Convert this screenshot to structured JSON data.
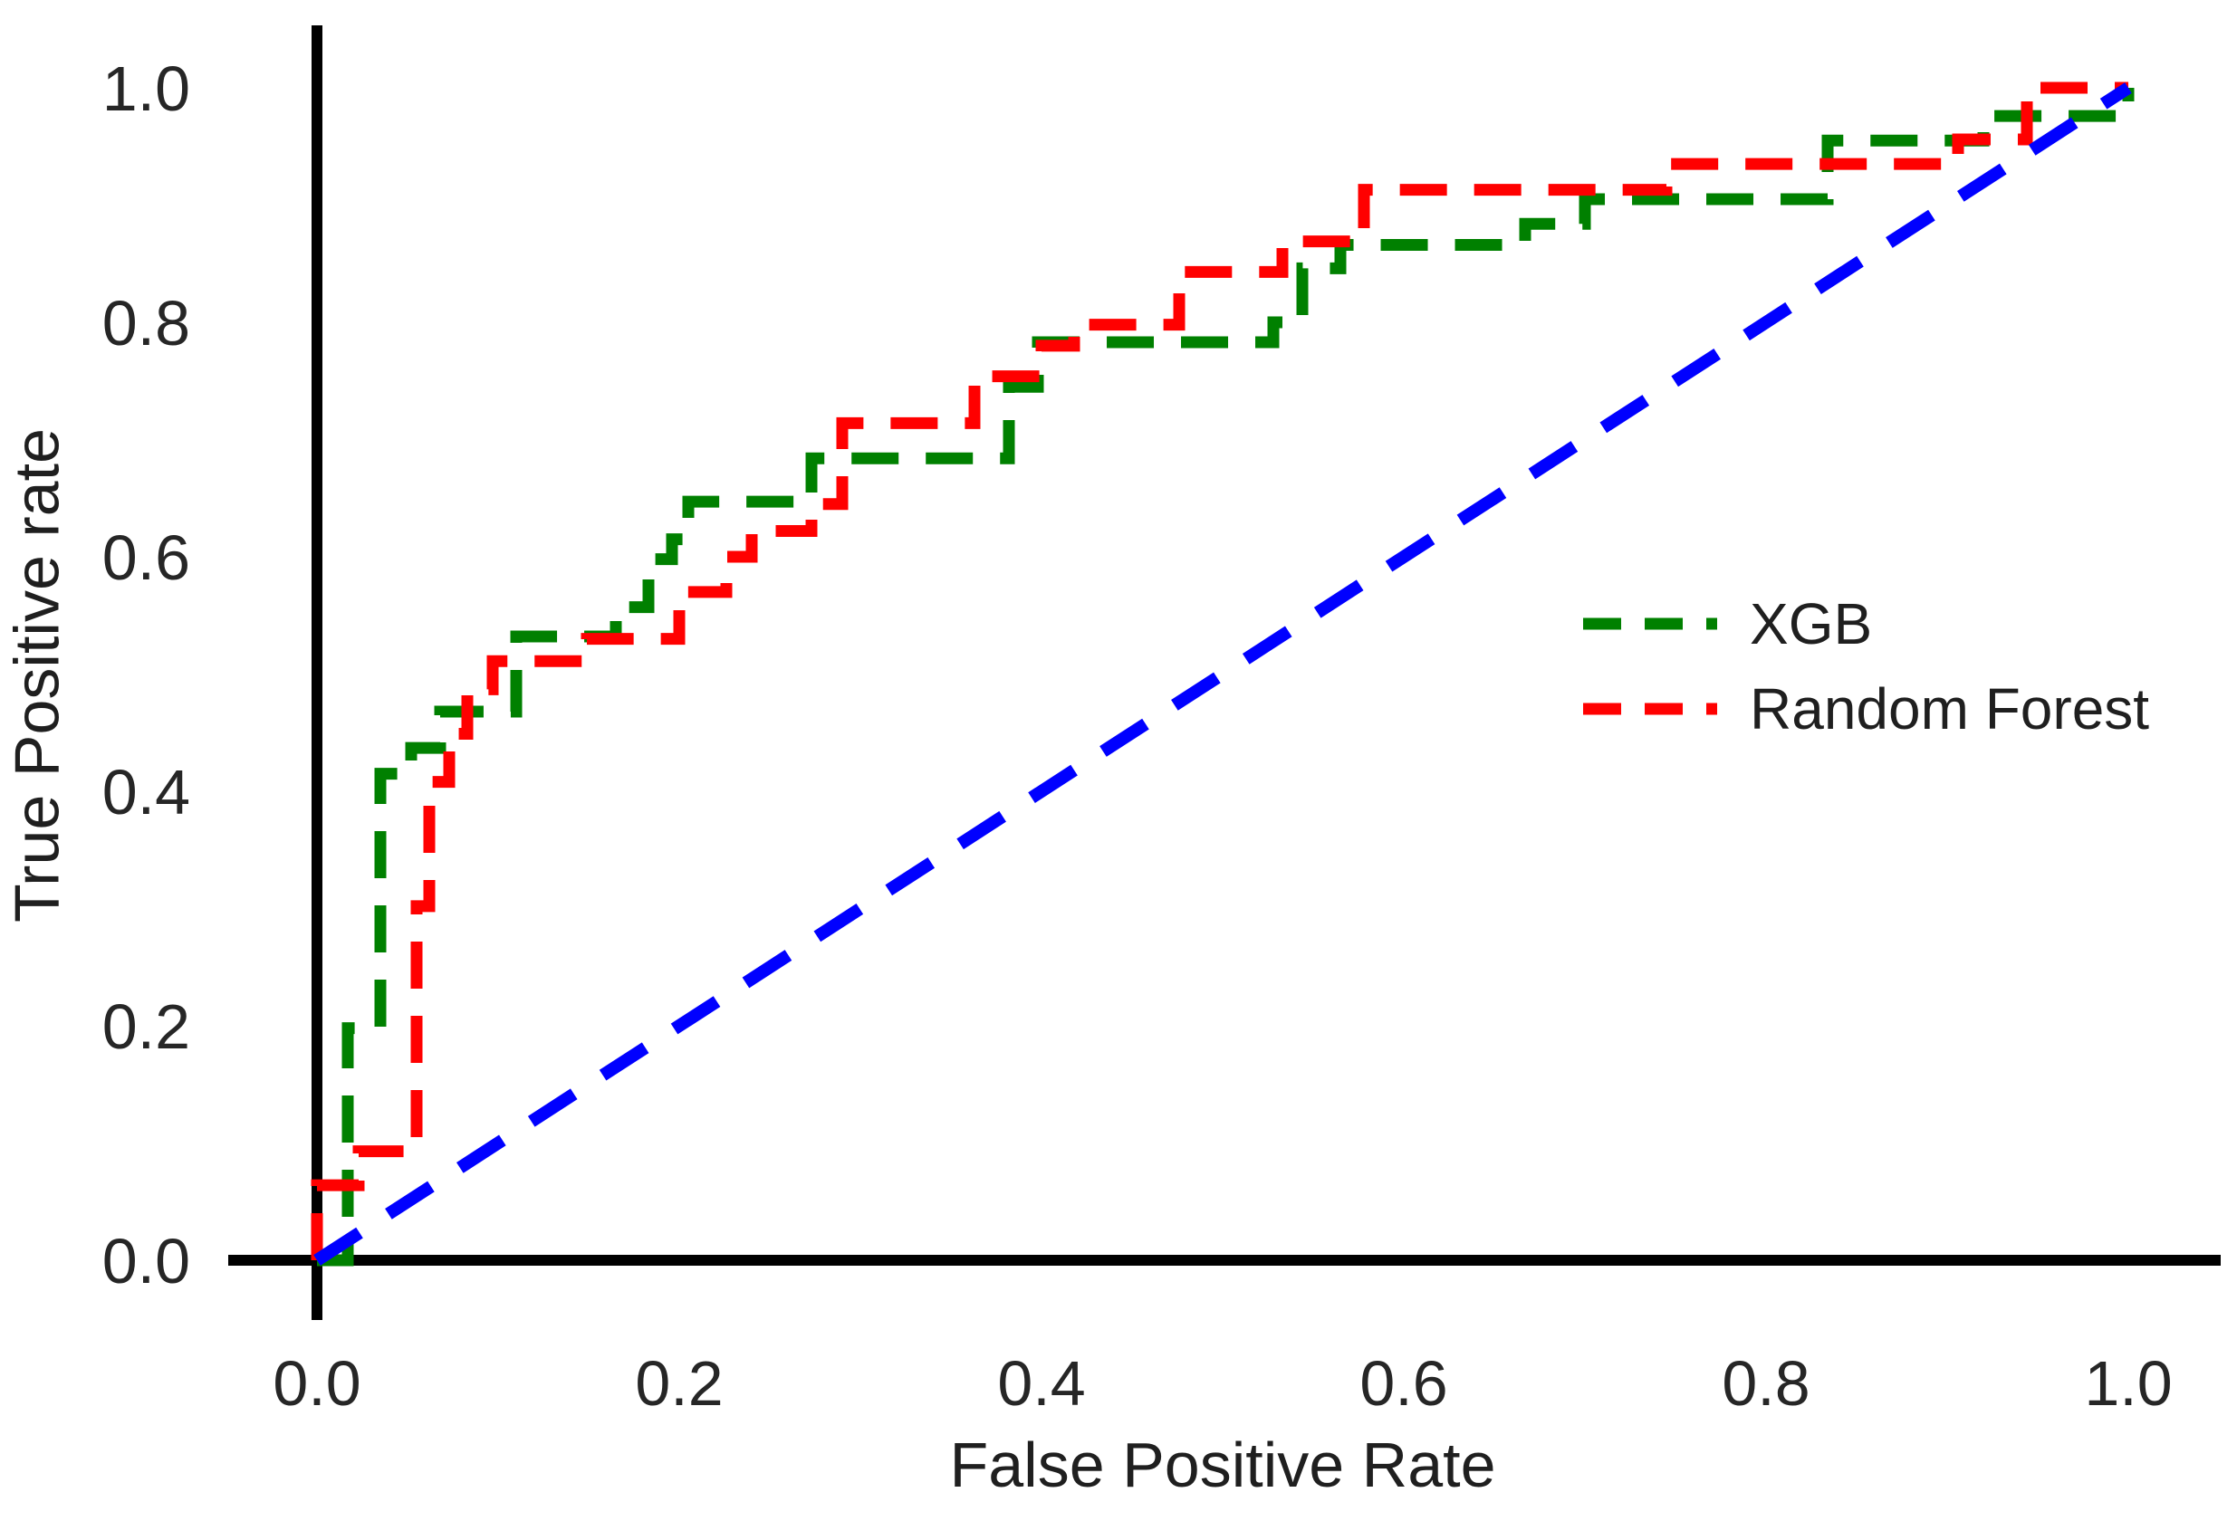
{
  "chart_data": {
    "type": "line",
    "subtype": "roc-curve",
    "title": "",
    "xlabel": "False Positive Rate",
    "ylabel": "True Positive rate",
    "xlim": [
      0.0,
      1.0
    ],
    "ylim": [
      0.0,
      1.0
    ],
    "x_tick_labels": [
      "0.0",
      "0.2",
      "0.4",
      "0.6",
      "0.8",
      "1.0"
    ],
    "y_tick_labels": [
      "0.0",
      "0.2",
      "0.4",
      "0.6",
      "0.8",
      "1.0"
    ],
    "grid": false,
    "legend_position": "center-right",
    "background_color": "#ffffff",
    "axis_color": "#000000",
    "text_color": "#1f1f1f",
    "series": [
      {
        "name": "XGB",
        "color": "#008000",
        "line_style": "dashed",
        "kind": "step",
        "steps": [
          [
            0.017,
            0.198
          ],
          [
            0.035,
            0.415
          ],
          [
            0.052,
            0.437
          ],
          [
            0.068,
            0.468
          ],
          [
            0.11,
            0.532
          ],
          [
            0.165,
            0.557
          ],
          [
            0.183,
            0.598
          ],
          [
            0.196,
            0.615
          ],
          [
            0.205,
            0.647
          ],
          [
            0.273,
            0.684
          ],
          [
            0.382,
            0.745
          ],
          [
            0.398,
            0.783
          ],
          [
            0.528,
            0.8
          ],
          [
            0.544,
            0.846
          ],
          [
            0.565,
            0.866
          ],
          [
            0.667,
            0.884
          ],
          [
            0.7,
            0.905
          ],
          [
            0.834,
            0.955
          ],
          [
            0.92,
            0.976
          ],
          [
            1.0,
            1.0
          ]
        ]
      },
      {
        "name": "Random Forest",
        "color": "#ff0000",
        "line_style": "dashed",
        "kind": "step",
        "steps": [
          [
            0.0,
            0.064
          ],
          [
            0.023,
            0.093
          ],
          [
            0.055,
            0.302
          ],
          [
            0.062,
            0.408
          ],
          [
            0.073,
            0.449
          ],
          [
            0.083,
            0.487
          ],
          [
            0.097,
            0.511
          ],
          [
            0.149,
            0.53
          ],
          [
            0.2,
            0.57
          ],
          [
            0.226,
            0.6
          ],
          [
            0.24,
            0.622
          ],
          [
            0.273,
            0.645
          ],
          [
            0.29,
            0.714
          ],
          [
            0.363,
            0.754
          ],
          [
            0.4,
            0.78
          ],
          [
            0.418,
            0.798
          ],
          [
            0.476,
            0.843
          ],
          [
            0.533,
            0.869
          ],
          [
            0.578,
            0.913
          ],
          [
            0.745,
            0.935
          ],
          [
            0.906,
            0.956
          ],
          [
            0.944,
            1.0
          ]
        ]
      },
      {
        "name": "chance-diagonal",
        "color": "#0000ff",
        "line_style": "dashed",
        "kind": "line",
        "points": [
          [
            0.0,
            0.0
          ],
          [
            1.0,
            1.0
          ]
        ]
      }
    ],
    "legend": [
      {
        "label": "XGB",
        "color": "#008000"
      },
      {
        "label": "Random Forest",
        "color": "#ff0000"
      }
    ]
  }
}
